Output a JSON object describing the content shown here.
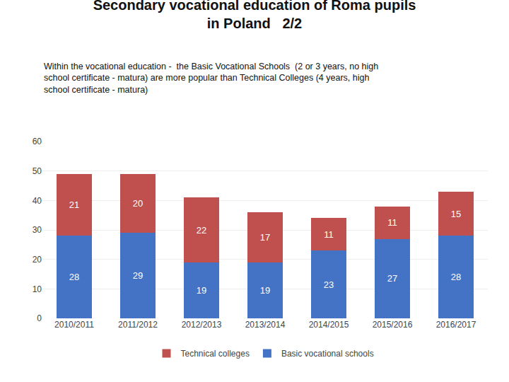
{
  "chart_data": {
    "type": "bar",
    "title": [
      "Secondary vocational education of Roma pupils",
      "in Poland   2/2"
    ],
    "subtitle": [
      "Within the vocational education -  the Basic Vocational Schools  (2 or 3 years, no high",
      "school certificate - matura) are more popular than Technical Colleges (4 years, high",
      "school certificate - matura)"
    ],
    "categories": [
      "2010/2011",
      "2011/2012",
      "2012/2013",
      "2013/2014",
      "2014/2015",
      "2015/2016",
      "2016/2017"
    ],
    "series": [
      {
        "name": "Basic vocational schools",
        "color": "#4472C4",
        "values": [
          28,
          29,
          19,
          19,
          23,
          27,
          28
        ]
      },
      {
        "name": "Technical colleges",
        "color": "#C0504D",
        "values": [
          21,
          20,
          22,
          17,
          11,
          11,
          15
        ]
      }
    ],
    "stacked": true,
    "data_labels": true,
    "ylim": [
      0,
      60
    ],
    "yticks": [
      0,
      10,
      20,
      30,
      40,
      50,
      60
    ],
    "grid": true,
    "legend": "bottom"
  }
}
